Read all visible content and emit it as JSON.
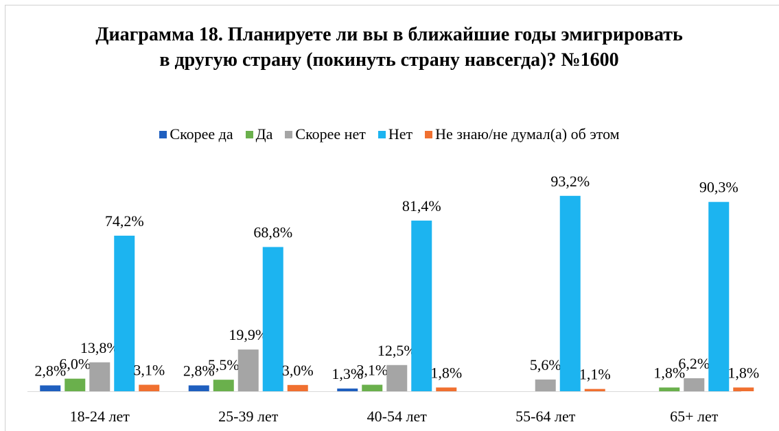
{
  "chart_data": {
    "type": "bar",
    "title": "Диаграмма 18. Планируете ли вы в ближайшие годы эмигрировать в другую страну (покинуть страну навсегда)? №1600",
    "categories": [
      "18-24 лет",
      "25-39 лет",
      "40-54 лет",
      "55-64 лет",
      "65+ лет"
    ],
    "series": [
      {
        "name": "Скорее да",
        "color": "#1f5fbf",
        "values": [
          2.8,
          2.8,
          1.3,
          null,
          null
        ],
        "value_labels": [
          "2,8%",
          "2,8%",
          "1,3%",
          null,
          null
        ]
      },
      {
        "name": "Да",
        "color": "#6ab04c",
        "values": [
          6.0,
          5.5,
          3.1,
          null,
          1.8
        ],
        "value_labels": [
          "6,0%",
          "5,5%",
          "3,1%",
          null,
          "1,8%"
        ]
      },
      {
        "name": "Скорее нет",
        "color": "#a5a5a5",
        "values": [
          13.8,
          19.9,
          12.5,
          5.6,
          6.2
        ],
        "value_labels": [
          "13,8%",
          "19,9%",
          "12,5%",
          "5,6%",
          "6,2%"
        ]
      },
      {
        "name": "Нет",
        "color": "#1cb4f0",
        "values": [
          74.2,
          68.8,
          81.4,
          93.2,
          90.3
        ],
        "value_labels": [
          "74,2%",
          "68,8%",
          "81,4%",
          "93,2%",
          "90,3%"
        ]
      },
      {
        "name": "Не знаю/не думал(а) об этом",
        "color": "#f07030",
        "values": [
          3.1,
          3.0,
          1.8,
          1.1,
          1.8
        ],
        "value_labels": [
          "3,1%",
          "3,0%",
          "1,8%",
          "1,1%",
          "1,8%"
        ]
      }
    ]
  }
}
